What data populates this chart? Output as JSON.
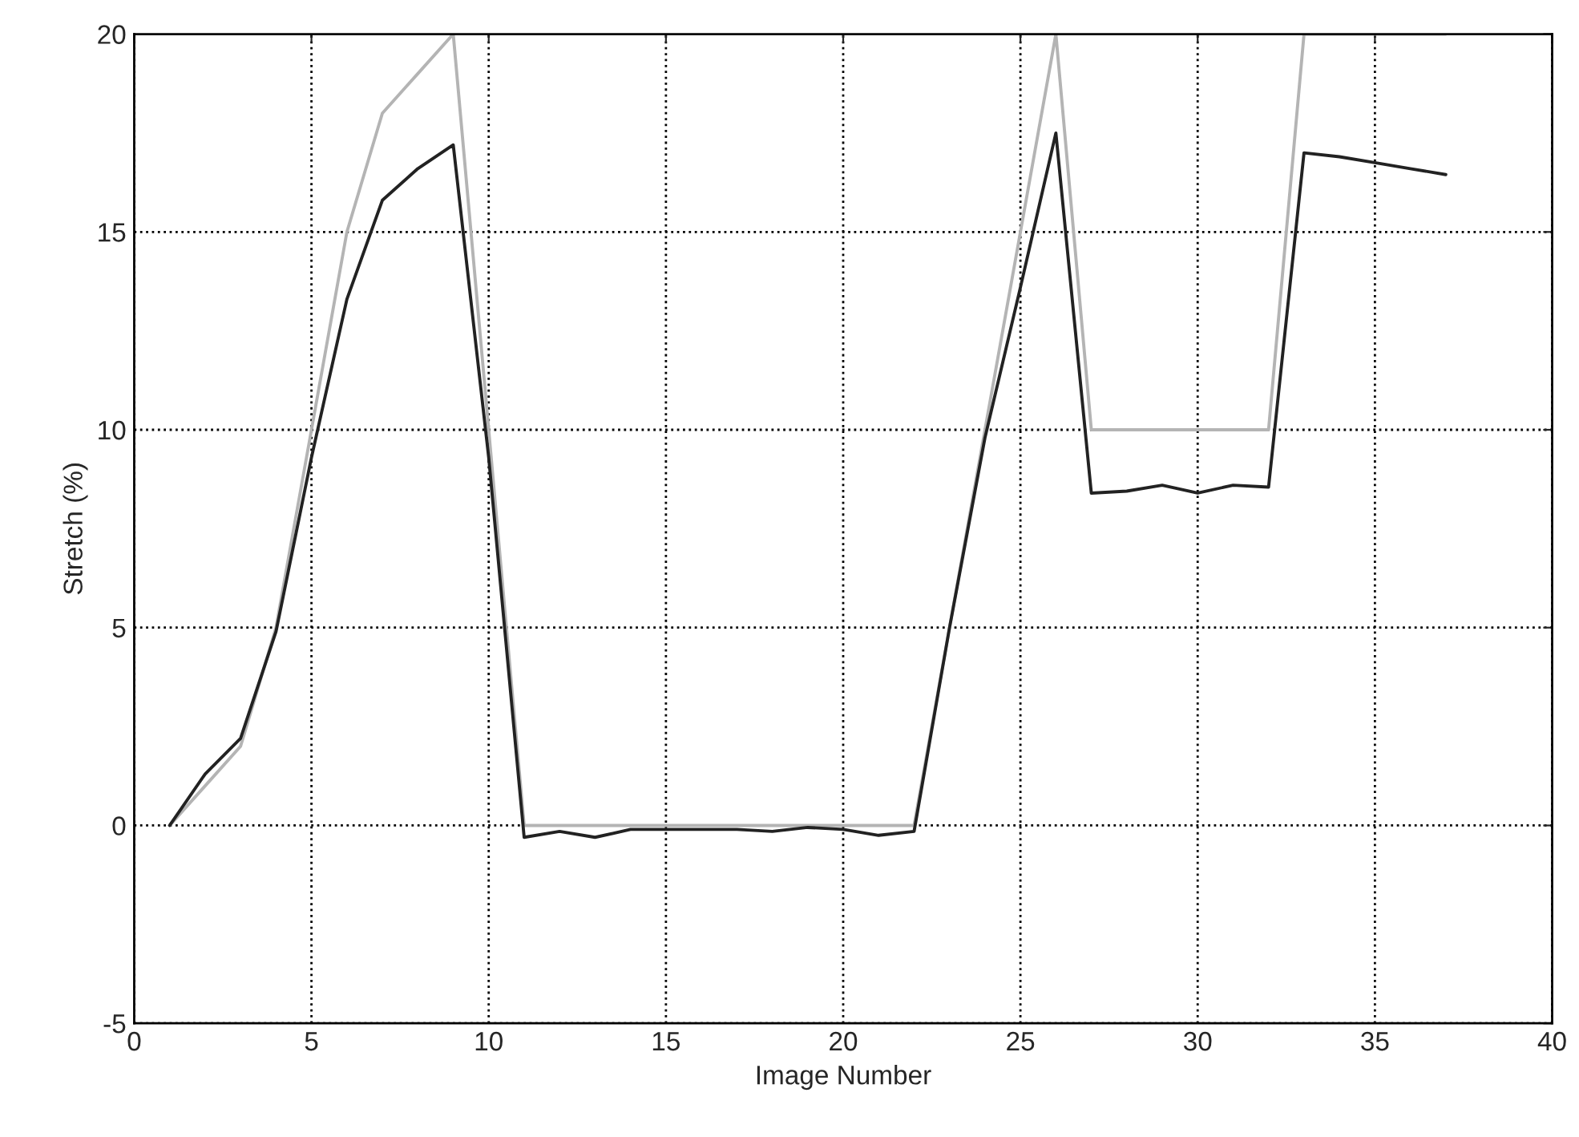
{
  "chart_data": {
    "type": "line",
    "xlabel": "Image Number",
    "ylabel": "Stretch (%)",
    "xlim": [
      0,
      40
    ],
    "ylim": [
      -5,
      20
    ],
    "xticks": [
      0,
      5,
      10,
      15,
      20,
      25,
      30,
      35,
      40
    ],
    "yticks": [
      -5,
      0,
      5,
      10,
      15,
      20
    ],
    "grid": true,
    "line_style": "solid",
    "series": [
      {
        "color": "#b4b4b4",
        "x": [
          1,
          2,
          3,
          4,
          5,
          6,
          7,
          8,
          9,
          10,
          11,
          12,
          13,
          14,
          15,
          16,
          17,
          18,
          19,
          20,
          21,
          22,
          23,
          24,
          25,
          26,
          27,
          28,
          29,
          30,
          31,
          32,
          33,
          34,
          35,
          36,
          37
        ],
        "values": [
          0,
          1,
          2,
          5,
          10,
          15,
          18,
          19,
          20,
          10,
          0,
          0,
          0,
          0,
          0,
          0,
          0,
          0,
          0,
          0,
          0,
          0,
          5,
          10,
          15,
          20,
          10,
          10,
          10,
          10,
          10,
          10,
          20,
          20,
          20,
          20,
          20
        ]
      },
      {
        "color": "#222222",
        "x": [
          1,
          2,
          3,
          4,
          5,
          6,
          7,
          8,
          9,
          10,
          11,
          12,
          13,
          14,
          15,
          16,
          17,
          18,
          19,
          20,
          21,
          22,
          23,
          24,
          25,
          26,
          27,
          28,
          29,
          30,
          31,
          32,
          33,
          34,
          35,
          36,
          37
        ],
        "values": [
          0,
          1.3,
          2.2,
          4.9,
          9.3,
          13.3,
          15.8,
          16.6,
          17.2,
          9.3,
          -0.3,
          -0.15,
          -0.3,
          -0.1,
          -0.1,
          -0.1,
          -0.1,
          -0.15,
          -0.05,
          -0.1,
          -0.25,
          -0.15,
          5,
          9.8,
          13.6,
          17.5,
          8.4,
          8.45,
          8.6,
          8.4,
          8.6,
          8.55,
          17,
          16.9,
          16.75,
          16.6,
          16.45
        ]
      }
    ]
  }
}
